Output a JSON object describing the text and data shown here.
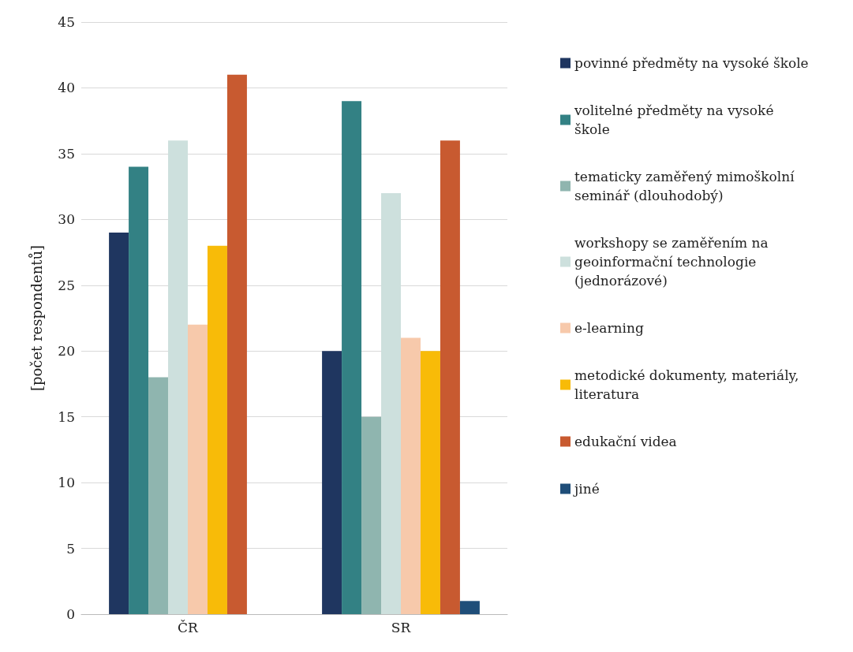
{
  "chart_data": {
    "type": "bar",
    "ylabel": "[počet respondentů]",
    "categories": [
      "ČR",
      "SR"
    ],
    "series": [
      {
        "name": "povinné předměty na vysoké škole",
        "color": "#1f3660",
        "values": [
          29,
          20
        ]
      },
      {
        "name": "volitelné předměty na vysoké škole",
        "color": "#338184",
        "values": [
          34,
          39
        ]
      },
      {
        "name": "tematicky zaměřený mimoškolní seminář (dlouhodobý)",
        "color": "#8fb5af",
        "values": [
          18,
          15
        ]
      },
      {
        "name": "workshopy se zaměřením na geoinformační technologie (jednorázové)",
        "color": "#cde0dd",
        "values": [
          36,
          32
        ]
      },
      {
        "name": "e-learning",
        "color": "#f7c9ab",
        "values": [
          22,
          21
        ]
      },
      {
        "name": "metodické dokumenty, materiály, literatura",
        "color": "#f8bb08",
        "values": [
          28,
          20
        ]
      },
      {
        "name": "edukační videa",
        "color": "#c85a30",
        "values": [
          41,
          36
        ]
      },
      {
        "name": "jiné",
        "color": "#1f4e79",
        "values": [
          0,
          1
        ]
      }
    ],
    "ylim": [
      0,
      45
    ],
    "yticks": [
      0,
      5,
      10,
      15,
      20,
      25,
      30,
      35,
      40,
      45
    ],
    "grid": "y",
    "legend": "right"
  }
}
